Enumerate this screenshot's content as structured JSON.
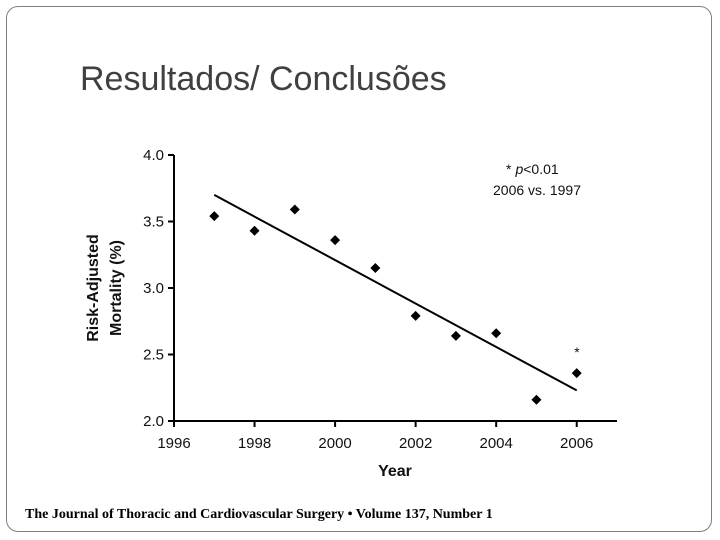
{
  "slide": {
    "title": "Resultados/ Conclusões",
    "footer": "The Journal of Thoracic and Cardiovascular Surgery • Volume 137, Number 1"
  },
  "chart_data": {
    "type": "scatter",
    "xlabel": "Year",
    "ylabel_lines": [
      "Risk-Adjusted",
      "Mortality (%)"
    ],
    "xlim": [
      1996,
      2007
    ],
    "ylim": [
      2.0,
      4.0
    ],
    "x_ticks": [
      "1996",
      "1998",
      "2000",
      "2002",
      "2004",
      "2006"
    ],
    "y_ticks": [
      "4.0",
      "3.5",
      "3.0",
      "2.5",
      "2.0"
    ],
    "marker_color": "#000000",
    "series": [
      {
        "x": [
          1997,
          1998,
          1999,
          2000,
          2001,
          2002,
          2003,
          2004,
          2005,
          2006
        ],
        "y": [
          3.54,
          3.43,
          3.59,
          3.36,
          3.15,
          2.79,
          2.64,
          2.66,
          2.16,
          2.36
        ]
      }
    ],
    "trendline": {
      "x": [
        1997,
        2006
      ],
      "y": [
        3.7,
        2.23
      ]
    },
    "annotations": {
      "stat_marker": "*",
      "stat_p": "p",
      "stat_rest": "<0.01",
      "comparison": "2006 vs. 1997",
      "point_star": "*"
    }
  }
}
